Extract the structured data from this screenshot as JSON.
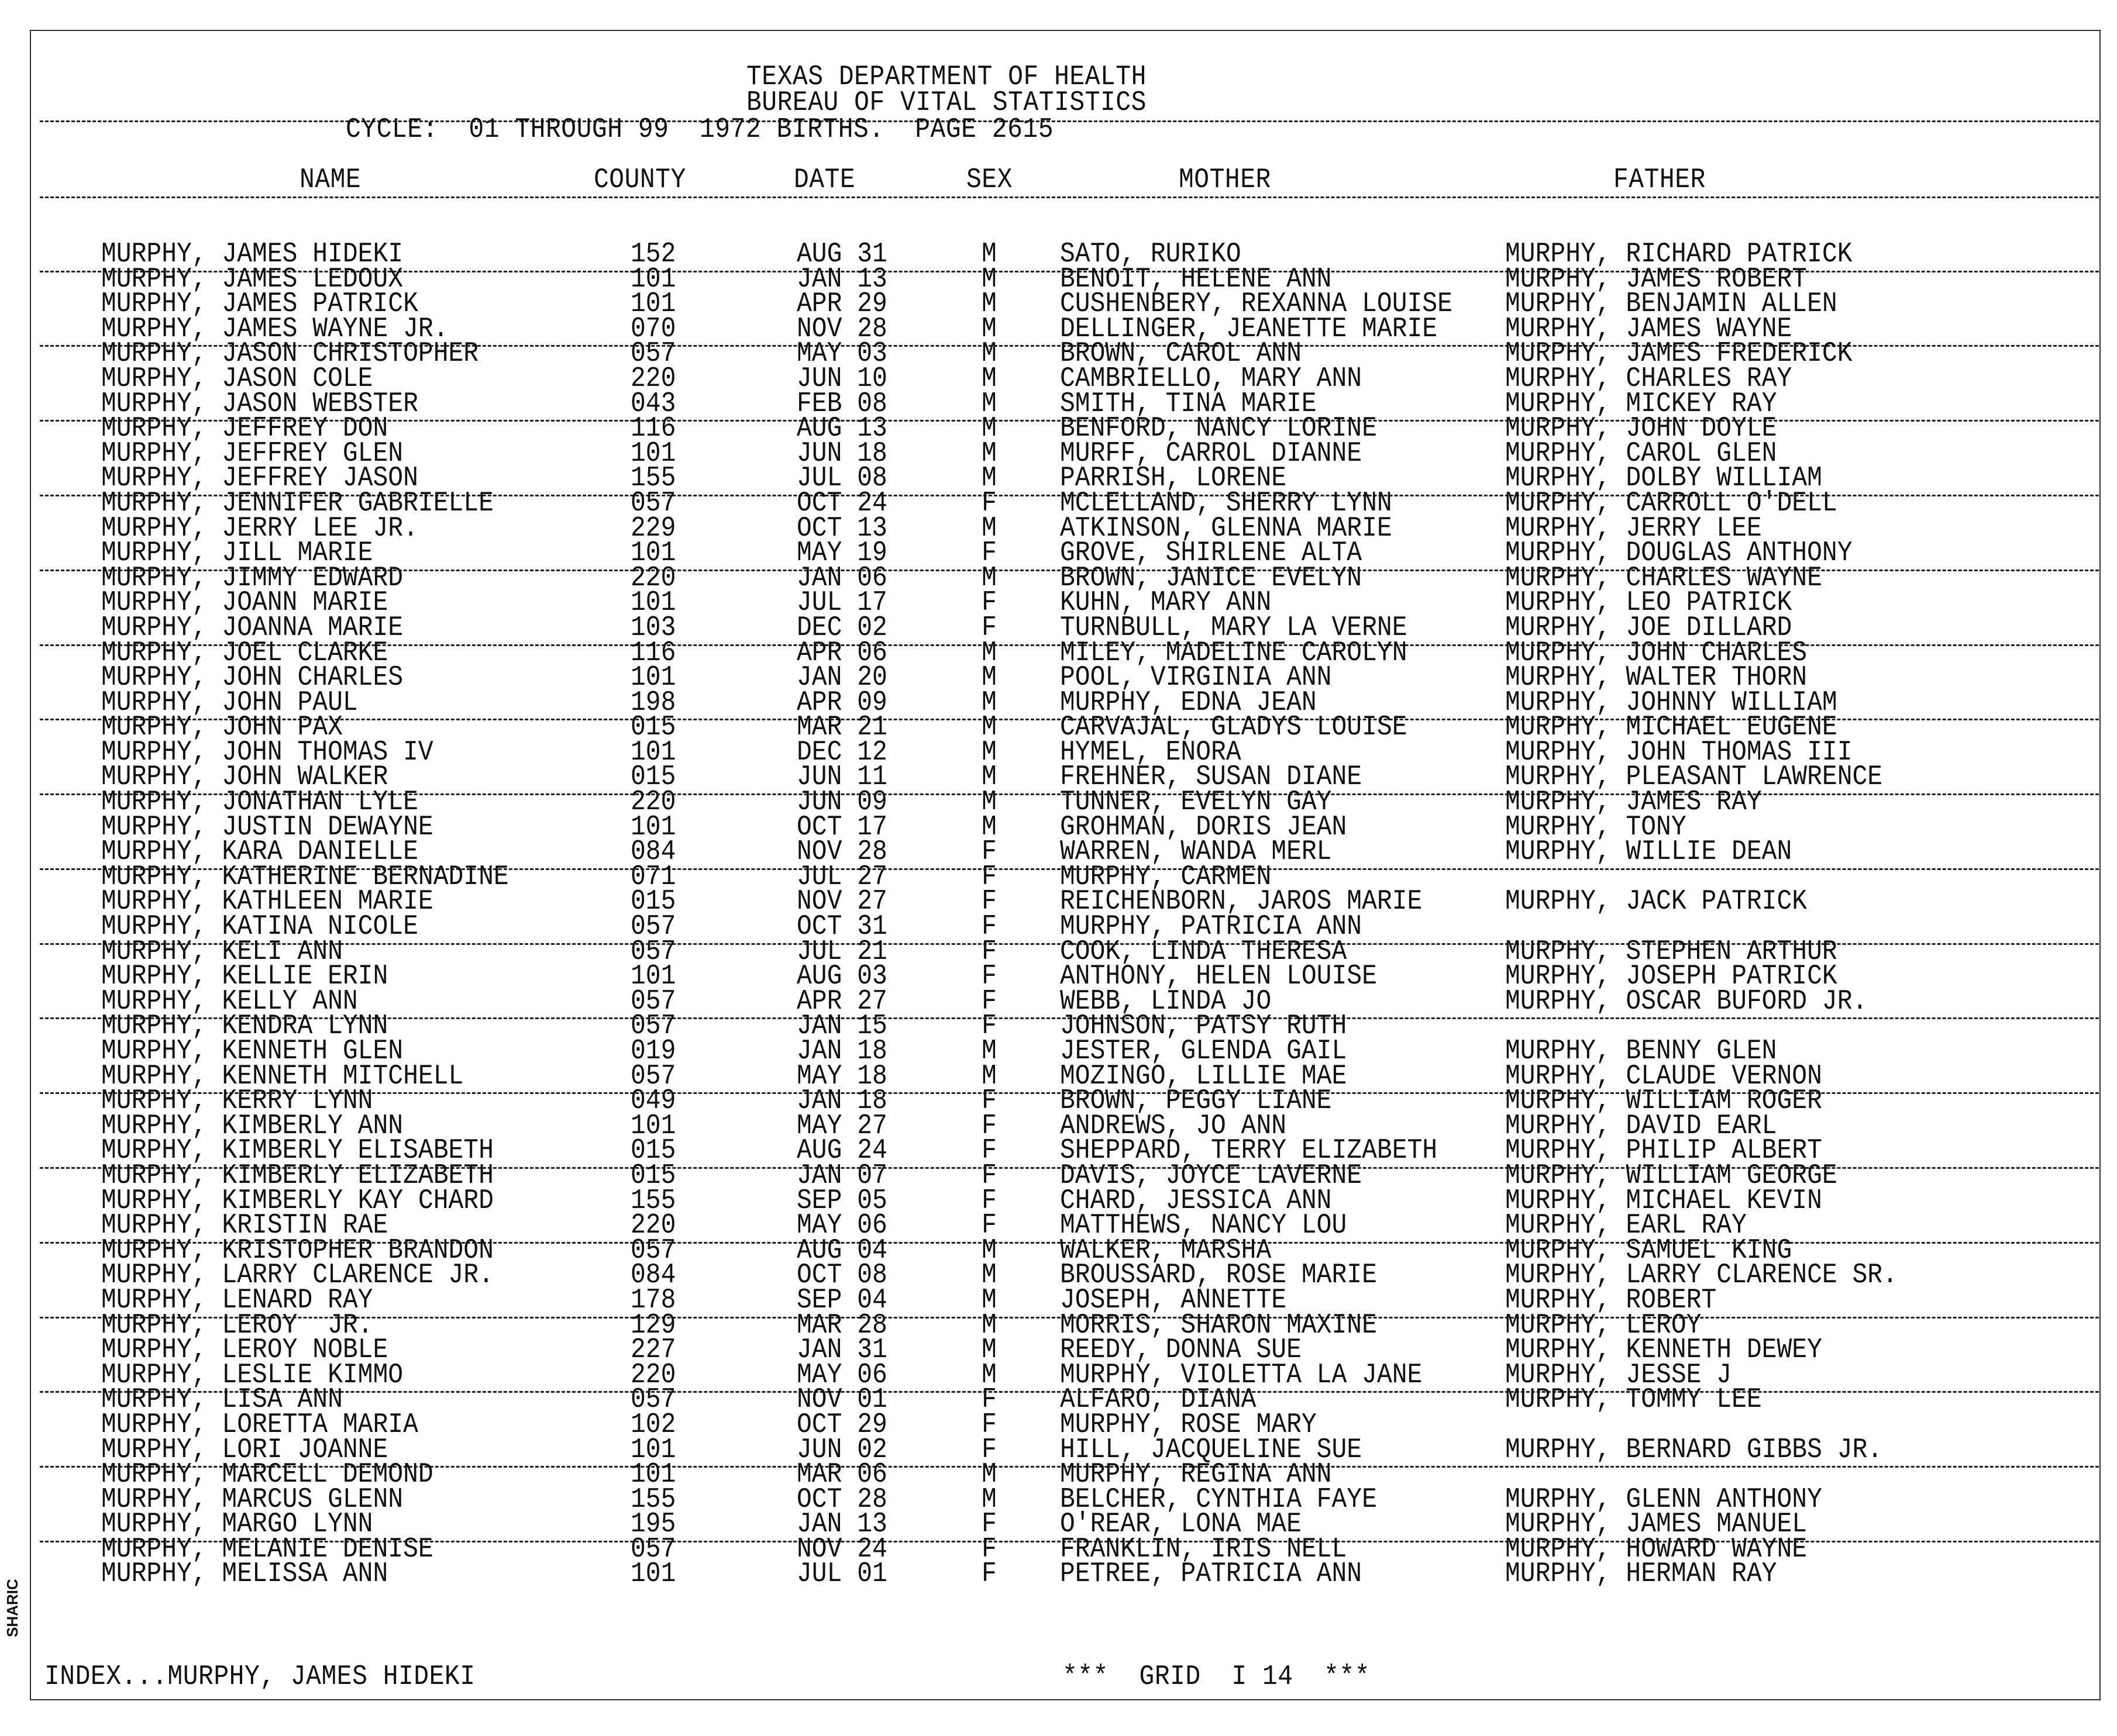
{
  "header": {
    "line1": "TEXAS DEPARTMENT OF HEALTH",
    "line2": "BUREAU OF VITAL STATISTICS",
    "cycle": "CYCLE:  01 THROUGH 99  1972 BIRTHS.  PAGE 2615"
  },
  "columns": {
    "name": "NAME",
    "county": "COUNTY",
    "date": "DATE",
    "sex": "SEX",
    "mother": "MOTHER",
    "father": "FATHER"
  },
  "rows": [
    [
      "MURPHY, JAMES HIDEKI",
      "152",
      "AUG 31",
      "M",
      "SATO, RURIKO",
      "MURPHY, RICHARD PATRICK"
    ],
    [
      "MURPHY, JAMES LEDOUX",
      "101",
      "JAN 13",
      "M",
      "BENOIT, HELENE ANN",
      "MURPHY, JAMES ROBERT"
    ],
    [
      "MURPHY, JAMES PATRICK",
      "101",
      "APR 29",
      "M",
      "CUSHENBERY, REXANNA LOUISE",
      "MURPHY, BENJAMIN ALLEN"
    ],
    [
      "MURPHY, JAMES WAYNE JR.",
      "070",
      "NOV 28",
      "M",
      "DELLINGER, JEANETTE MARIE",
      "MURPHY, JAMES WAYNE"
    ],
    [
      "MURPHY, JASON CHRISTOPHER",
      "057",
      "MAY 03",
      "M",
      "BROWN, CAROL ANN",
      "MURPHY, JAMES FREDERICK"
    ],
    [
      "MURPHY, JASON COLE",
      "220",
      "JUN 10",
      "M",
      "CAMBRIELLO, MARY ANN",
      "MURPHY, CHARLES RAY"
    ],
    [
      "MURPHY, JASON WEBSTER",
      "043",
      "FEB 08",
      "M",
      "SMITH, TINA MARIE",
      "MURPHY, MICKEY RAY"
    ],
    [
      "MURPHY, JEFFREY DON",
      "116",
      "AUG 13",
      "M",
      "BENFORD, NANCY LORINE",
      "MURPHY, JOHN DOYLE"
    ],
    [
      "MURPHY, JEFFREY GLEN",
      "101",
      "JUN 18",
      "M",
      "MURFF, CARROL DIANNE",
      "MURPHY, CAROL GLEN"
    ],
    [
      "MURPHY, JEFFREY JASON",
      "155",
      "JUL 08",
      "M",
      "PARRISH, LORENE",
      "MURPHY, DOLBY WILLIAM"
    ],
    [
      "MURPHY, JENNIFER GABRIELLE",
      "057",
      "OCT 24",
      "F",
      "MCLELLAND, SHERRY LYNN",
      "MURPHY, CARROLL O'DELL"
    ],
    [
      "MURPHY, JERRY LEE JR.",
      "229",
      "OCT 13",
      "M",
      "ATKINSON, GLENNA MARIE",
      "MURPHY, JERRY LEE"
    ],
    [
      "MURPHY, JILL MARIE",
      "101",
      "MAY 19",
      "F",
      "GROVE, SHIRLENE ALTA",
      "MURPHY, DOUGLAS ANTHONY"
    ],
    [
      "MURPHY, JIMMY EDWARD",
      "220",
      "JAN 06",
      "M",
      "BROWN, JANICE EVELYN",
      "MURPHY, CHARLES WAYNE"
    ],
    [
      "MURPHY, JOANN MARIE",
      "101",
      "JUL 17",
      "F",
      "KUHN, MARY ANN",
      "MURPHY, LEO PATRICK"
    ],
    [
      "MURPHY, JOANNA MARIE",
      "103",
      "DEC 02",
      "F",
      "TURNBULL, MARY LA VERNE",
      "MURPHY, JOE DILLARD"
    ],
    [
      "MURPHY, JOEL CLARKE",
      "116",
      "APR 06",
      "M",
      "MILEY, MADELINE CAROLYN",
      "MURPHY, JOHN CHARLES"
    ],
    [
      "MURPHY, JOHN CHARLES",
      "101",
      "JAN 20",
      "M",
      "POOL, VIRGINIA ANN",
      "MURPHY, WALTER THORN"
    ],
    [
      "MURPHY, JOHN PAUL",
      "198",
      "APR 09",
      "M",
      "MURPHY, EDNA JEAN",
      "MURPHY, JOHNNY WILLIAM"
    ],
    [
      "MURPHY, JOHN PAX",
      "015",
      "MAR 21",
      "M",
      "CARVAJAL, GLADYS LOUISE",
      "MURPHY, MICHAEL EUGENE"
    ],
    [
      "MURPHY, JOHN THOMAS IV",
      "101",
      "DEC 12",
      "M",
      "HYMEL, ENORA",
      "MURPHY, JOHN THOMAS III"
    ],
    [
      "MURPHY, JOHN WALKER",
      "015",
      "JUN 11",
      "M",
      "FREHNER, SUSAN DIANE",
      "MURPHY, PLEASANT LAWRENCE"
    ],
    [
      "MURPHY, JONATHAN LYLE",
      "220",
      "JUN 09",
      "M",
      "TUNNER, EVELYN GAY",
      "MURPHY, JAMES RAY"
    ],
    [
      "MURPHY, JUSTIN DEWAYNE",
      "101",
      "OCT 17",
      "M",
      "GROHMAN, DORIS JEAN",
      "MURPHY, TONY"
    ],
    [
      "MURPHY, KARA DANIELLE",
      "084",
      "NOV 28",
      "F",
      "WARREN, WANDA MERL",
      "MURPHY, WILLIE DEAN"
    ],
    [
      "MURPHY, KATHERINE BERNADINE",
      "071",
      "JUL 27",
      "F",
      "MURPHY, CARMEN",
      ""
    ],
    [
      "MURPHY, KATHLEEN MARIE",
      "015",
      "NOV 27",
      "F",
      "REICHENBORN, JAROS MARIE",
      "MURPHY, JACK PATRICK"
    ],
    [
      "MURPHY, KATINA NICOLE",
      "057",
      "OCT 31",
      "F",
      "MURPHY, PATRICIA ANN",
      ""
    ],
    [
      "MURPHY, KELI ANN",
      "057",
      "JUL 21",
      "F",
      "COOK, LINDA THERESA",
      "MURPHY, STEPHEN ARTHUR"
    ],
    [
      "MURPHY, KELLIE ERIN",
      "101",
      "AUG 03",
      "F",
      "ANTHONY, HELEN LOUISE",
      "MURPHY, JOSEPH PATRICK"
    ],
    [
      "MURPHY, KELLY ANN",
      "057",
      "APR 27",
      "F",
      "WEBB, LINDA JO",
      "MURPHY, OSCAR BUFORD JR."
    ],
    [
      "MURPHY, KENDRA LYNN",
      "057",
      "JAN 15",
      "F",
      "JOHNSON, PATSY RUTH",
      ""
    ],
    [
      "MURPHY, KENNETH GLEN",
      "019",
      "JAN 18",
      "M",
      "JESTER, GLENDA GAIL",
      "MURPHY, BENNY GLEN"
    ],
    [
      "MURPHY, KENNETH MITCHELL",
      "057",
      "MAY 18",
      "M",
      "MOZINGO, LILLIE MAE",
      "MURPHY, CLAUDE VERNON"
    ],
    [
      "MURPHY, KERRY LYNN",
      "049",
      "JAN 18",
      "F",
      "BROWN, PEGGY LIANE",
      "MURPHY, WILLIAM ROGER"
    ],
    [
      "MURPHY, KIMBERLY ANN",
      "101",
      "MAY 27",
      "F",
      "ANDREWS, JO ANN",
      "MURPHY, DAVID EARL"
    ],
    [
      "MURPHY, KIMBERLY ELISABETH",
      "015",
      "AUG 24",
      "F",
      "SHEPPARD, TERRY ELIZABETH",
      "MURPHY, PHILIP ALBERT"
    ],
    [
      "MURPHY, KIMBERLY ELIZABETH",
      "015",
      "JAN 07",
      "F",
      "DAVIS, JOYCE LAVERNE",
      "MURPHY, WILLIAM GEORGE"
    ],
    [
      "MURPHY, KIMBERLY KAY CHARD",
      "155",
      "SEP 05",
      "F",
      "CHARD, JESSICA ANN",
      "MURPHY, MICHAEL KEVIN"
    ],
    [
      "MURPHY, KRISTIN RAE",
      "220",
      "MAY 06",
      "F",
      "MATTHEWS, NANCY LOU",
      "MURPHY, EARL RAY"
    ],
    [
      "MURPHY, KRISTOPHER BRANDON",
      "057",
      "AUG 04",
      "M",
      "WALKER, MARSHA",
      "MURPHY, SAMUEL KING"
    ],
    [
      "MURPHY, LARRY CLARENCE JR.",
      "084",
      "OCT 08",
      "M",
      "BROUSSARD, ROSE MARIE",
      "MURPHY, LARRY CLARENCE SR."
    ],
    [
      "MURPHY, LENARD RAY",
      "178",
      "SEP 04",
      "M",
      "JOSEPH, ANNETTE",
      "MURPHY, ROBERT"
    ],
    [
      "MURPHY, LEROY  JR.",
      "129",
      "MAR 28",
      "M",
      "MORRIS, SHARON MAXINE",
      "MURPHY, LEROY"
    ],
    [
      "MURPHY, LEROY NOBLE",
      "227",
      "JAN 31",
      "M",
      "REEDY, DONNA SUE",
      "MURPHY, KENNETH DEWEY"
    ],
    [
      "MURPHY, LESLIE KIMMO",
      "220",
      "MAY 06",
      "M",
      "MURPHY, VIOLETTA LA JANE",
      "MURPHY, JESSE J"
    ],
    [
      "MURPHY, LISA ANN",
      "057",
      "NOV 01",
      "F",
      "ALFARO, DIANA",
      "MURPHY, TOMMY LEE"
    ],
    [
      "MURPHY, LORETTA MARIA",
      "102",
      "OCT 29",
      "F",
      "MURPHY, ROSE MARY",
      ""
    ],
    [
      "MURPHY, LORI JOANNE",
      "101",
      "JUN 02",
      "F",
      "HILL, JACQUELINE SUE",
      "MURPHY, BERNARD GIBBS JR."
    ],
    [
      "MURPHY, MARCELL DEMOND",
      "101",
      "MAR 06",
      "M",
      "MURPHY, REGINA ANN",
      ""
    ],
    [
      "MURPHY, MARCUS GLENN",
      "155",
      "OCT 28",
      "M",
      "BELCHER, CYNTHIA FAYE",
      "MURPHY, GLENN ANTHONY"
    ],
    [
      "MURPHY, MARGO LYNN",
      "195",
      "JAN 13",
      "F",
      "O'REAR, LONA MAE",
      "MURPHY, JAMES MANUEL"
    ],
    [
      "MURPHY, MELANIE DENISE",
      "057",
      "NOV 24",
      "F",
      "FRANKLIN, IRIS NELL",
      "MURPHY, HOWARD WAYNE"
    ],
    [
      "MURPHY, MELISSA ANN",
      "101",
      "JUL 01",
      "F",
      "PETREE, PATRICIA ANN",
      "MURPHY, HERMAN RAY"
    ]
  ],
  "footer": {
    "index": "INDEX...MURPHY, JAMES HIDEKI",
    "grid": "***  GRID  I 14  ***"
  },
  "side_label": "SHARIC"
}
